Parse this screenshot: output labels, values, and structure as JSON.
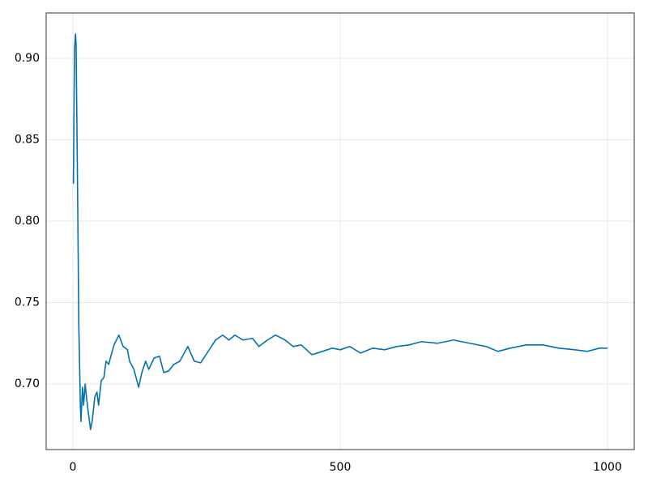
{
  "chart_data": {
    "type": "line",
    "x": [
      1,
      3,
      5,
      6,
      9,
      11,
      14,
      15,
      18,
      20,
      23,
      26,
      29,
      33,
      36,
      41,
      45,
      48,
      53,
      58,
      62,
      67,
      71,
      77,
      86,
      94,
      102,
      106,
      114,
      123,
      129,
      136,
      142,
      152,
      162,
      170,
      179,
      189,
      200,
      215,
      227,
      239,
      255,
      267,
      280,
      292,
      303,
      318,
      336,
      348,
      364,
      379,
      397,
      412,
      427,
      447,
      467,
      485,
      500,
      518,
      538,
      561,
      583,
      606,
      629,
      652,
      682,
      712,
      742,
      773,
      795,
      818,
      848,
      879,
      909,
      939,
      962,
      985,
      1000
    ],
    "series": [
      {
        "color": "#0072b2",
        "values": [
          0.823,
          0.906,
          0.915,
          0.908,
          0.811,
          0.737,
          0.687,
          0.677,
          0.698,
          0.687,
          0.7,
          0.69,
          0.682,
          0.672,
          0.677,
          0.692,
          0.695,
          0.687,
          0.702,
          0.704,
          0.714,
          0.712,
          0.717,
          0.724,
          0.73,
          0.723,
          0.721,
          0.714,
          0.709,
          0.698,
          0.707,
          0.714,
          0.709,
          0.716,
          0.717,
          0.707,
          0.708,
          0.712,
          0.714,
          0.723,
          0.714,
          0.713,
          0.721,
          0.727,
          0.73,
          0.727,
          0.73,
          0.727,
          0.728,
          0.723,
          0.727,
          0.73,
          0.727,
          0.723,
          0.724,
          0.718,
          0.72,
          0.722,
          0.721,
          0.723,
          0.719,
          0.722,
          0.721,
          0.723,
          0.724,
          0.726,
          0.725,
          0.727,
          0.725,
          0.723,
          0.72,
          0.722,
          0.724,
          0.724,
          0.722,
          0.721,
          0.72,
          0.722,
          0.722
        ]
      }
    ],
    "xlim": [
      -50,
      1050
    ],
    "ylim": [
      0.6597,
      0.9279
    ],
    "xticks": [
      0,
      500,
      1000
    ],
    "yticks": [
      {
        "value": 0.7,
        "label": "0.70"
      },
      0.75,
      {
        "value": 0.8,
        "label": "0.80"
      },
      0.85,
      {
        "value": 0.9,
        "label": "0.90"
      }
    ],
    "grid": true
  }
}
